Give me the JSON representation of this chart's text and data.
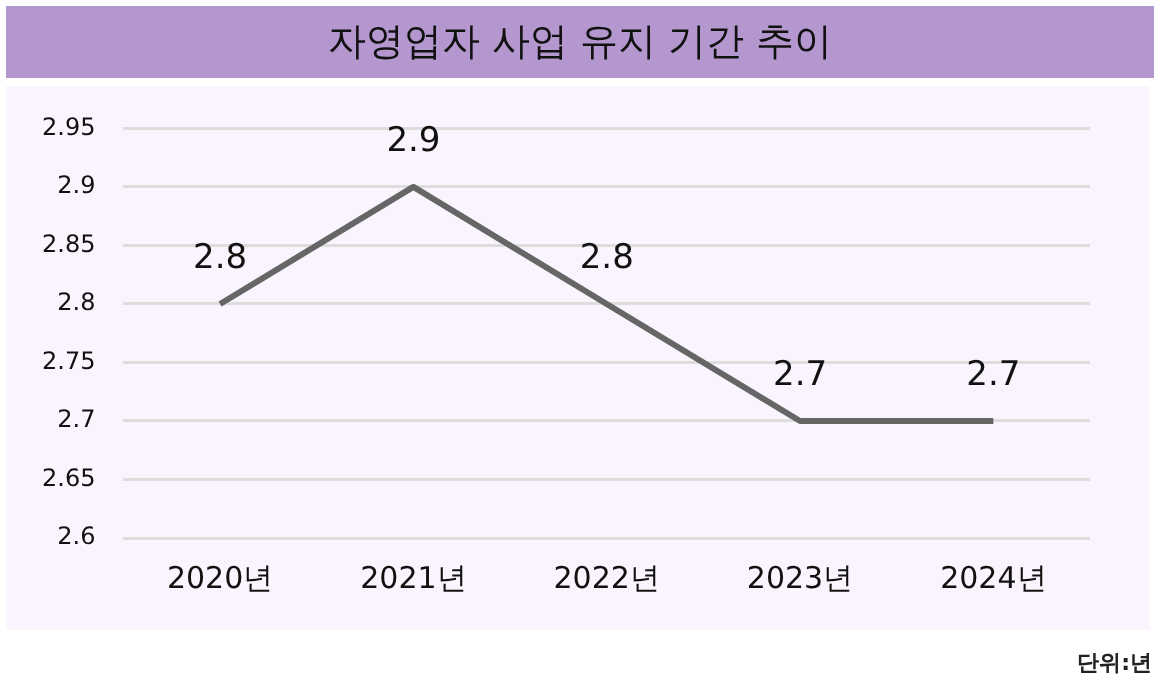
{
  "chart_data": {
    "type": "line",
    "title": "자영업자 사업 유지 기간 추이",
    "categories": [
      "2020년",
      "2021년",
      "2022년",
      "2023년",
      "2024년"
    ],
    "series": [
      {
        "color": "#666666",
        "values": [
          2.8,
          2.9,
          2.8,
          2.7,
          2.7
        ]
      }
    ],
    "ylim": [
      2.6,
      2.95
    ],
    "yticks": [
      2.6,
      2.65,
      2.7,
      2.75,
      2.8,
      2.85,
      2.9,
      2.95
    ],
    "grid": "y",
    "legend": false,
    "marker": "none",
    "line_style": "solid",
    "data_labels": true,
    "annotations": [
      "단위:년"
    ]
  }
}
